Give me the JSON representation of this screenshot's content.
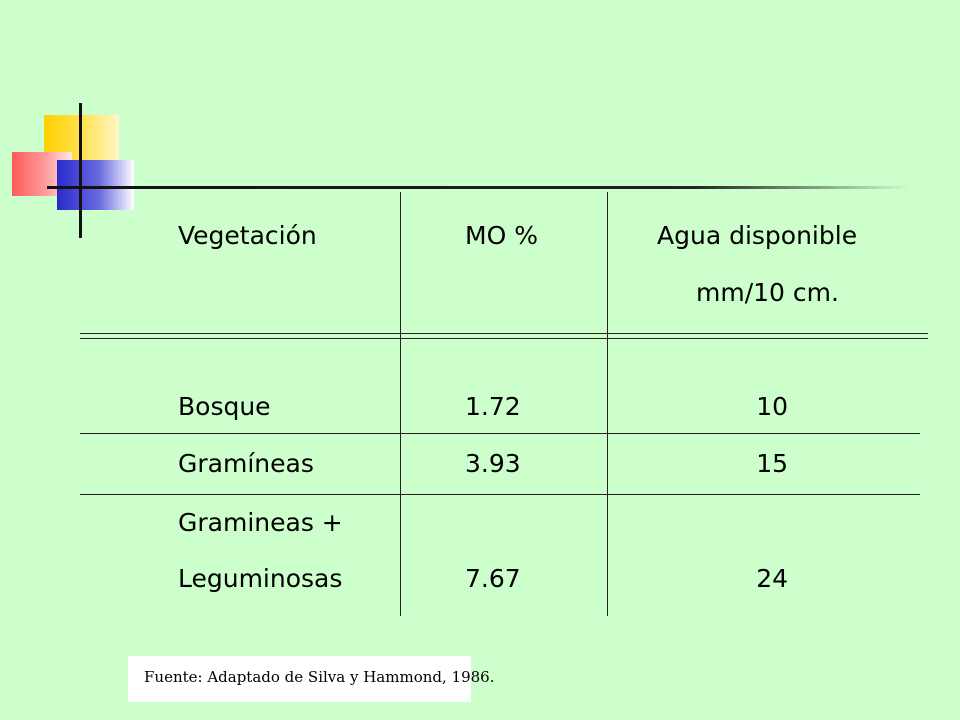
{
  "table": {
    "headers": {
      "vegetacion": "Vegetación",
      "mo": "MO %",
      "agua_line1": "Agua disponible",
      "agua_line2": "mm/10 cm."
    },
    "rows": [
      {
        "vegetacion": "Bosque",
        "mo": "1.72",
        "agua": "10"
      },
      {
        "vegetacion": "Gramíneas",
        "mo": "3.93",
        "agua": "15"
      },
      {
        "vegetacion_line1": "Gramineas +",
        "vegetacion_line2": "Leguminosas",
        "mo": "7.67",
        "agua": "24"
      }
    ]
  },
  "source": "Fuente: Adaptado de Silva y Hammond, 1986."
}
